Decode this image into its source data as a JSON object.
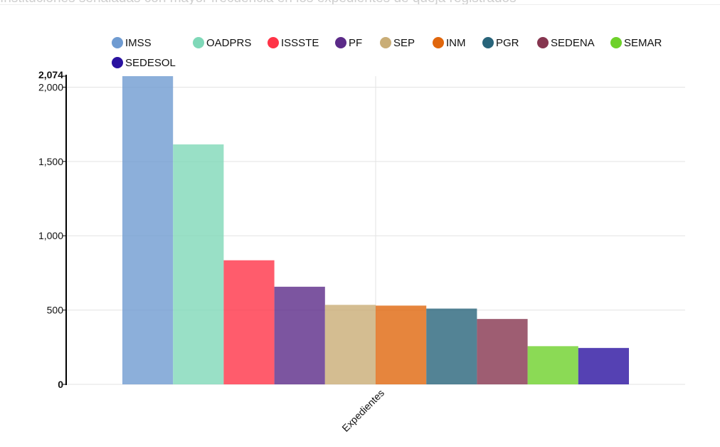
{
  "chart_data": {
    "type": "bar",
    "title": "Instituciones señaladas con mayor frecuencia en los expedientes de queja registrados",
    "categories": [
      "Expedientes"
    ],
    "series": [
      {
        "name": "IMSS",
        "values": [
          2074
        ],
        "color": "#6f9bd1"
      },
      {
        "name": "OADPRS",
        "values": [
          1615
        ],
        "color": "#7fd8b8"
      },
      {
        "name": "ISSSTE",
        "values": [
          835
        ],
        "color": "#ff3347"
      },
      {
        "name": "PF",
        "values": [
          657
        ],
        "color": "#5b2a88"
      },
      {
        "name": "SEP",
        "values": [
          535
        ],
        "color": "#c9ad76"
      },
      {
        "name": "INM",
        "values": [
          530
        ],
        "color": "#e0660c"
      },
      {
        "name": "PGR",
        "values": [
          510
        ],
        "color": "#28647a"
      },
      {
        "name": "SEDENA",
        "values": [
          440
        ],
        "color": "#86354f"
      },
      {
        "name": "SEMAR",
        "values": [
          257
        ],
        "color": "#6ed12a"
      },
      {
        "name": "SEDESOL",
        "values": [
          245
        ],
        "color": "#2a12a0"
      }
    ],
    "ylim": [
      0,
      2074
    ],
    "y_ticks": [
      {
        "value": 0,
        "label": "0",
        "bold": true
      },
      {
        "value": 500,
        "label": "500",
        "bold": false
      },
      {
        "value": 1000,
        "label": "1,000",
        "bold": false
      },
      {
        "value": 1500,
        "label": "1,500",
        "bold": false
      },
      {
        "value": 2000,
        "label": "2,000",
        "bold": false
      },
      {
        "value": 2074,
        "label": "2,074",
        "bold": true
      }
    ],
    "xlabel": "",
    "ylabel": "",
    "legend_position": "top",
    "grid": true
  }
}
